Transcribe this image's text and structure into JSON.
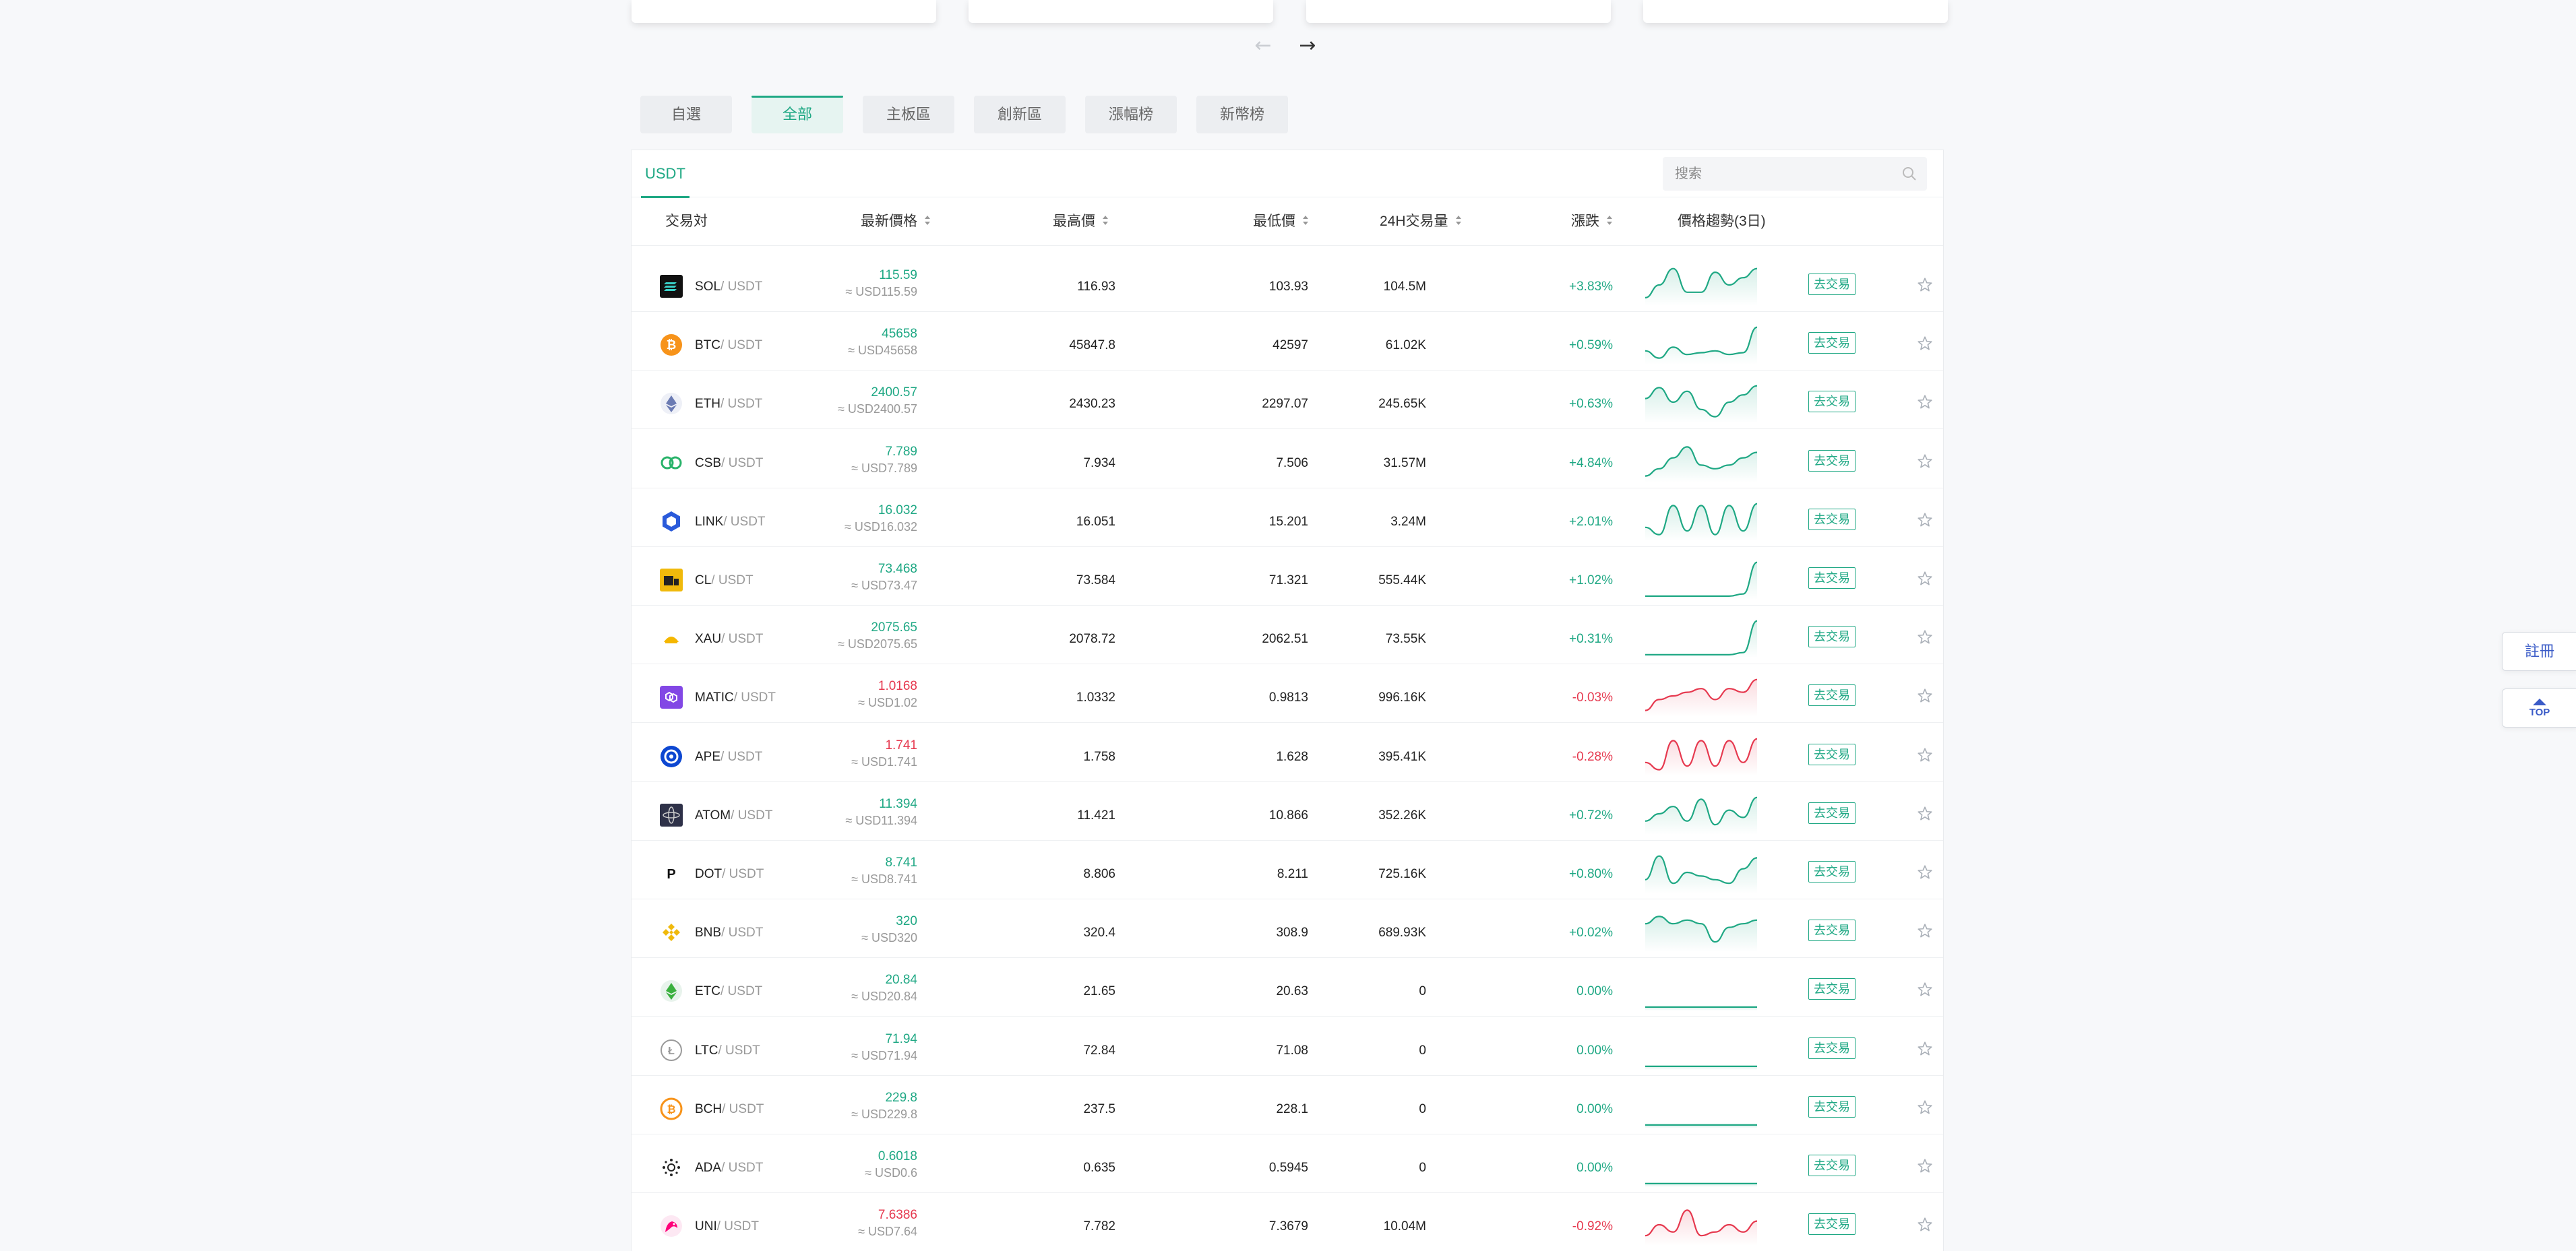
{
  "nav": {
    "prev_arrow": "←",
    "next_arrow": "→"
  },
  "category_tabs": [
    {
      "label": "自選",
      "active": false
    },
    {
      "label": "全部",
      "active": true
    },
    {
      "label": "主板區",
      "active": false
    },
    {
      "label": "創新區",
      "active": false
    },
    {
      "label": "漲幅榜",
      "active": false
    },
    {
      "label": "新幣榜",
      "active": false
    }
  ],
  "quote_tab": "USDT",
  "search": {
    "placeholder": "搜索",
    "value": ""
  },
  "columns": {
    "pair": "交易対",
    "last_price": "最新價格",
    "high": "最高價",
    "low": "最低價",
    "volume": "24H交易量",
    "change": "漲跌",
    "trend": "價格趨勢(3日)"
  },
  "trade_label": "去交易",
  "rows": [
    {
      "base": "SOL",
      "quote": "/ USDT",
      "icon": "sol-icon",
      "price": "115.59",
      "usd": "≈ USD115.59",
      "high": "116.93",
      "low": "103.93",
      "volume": "104.5M",
      "change": "+3.83%",
      "dir": "up",
      "trend": [
        0.15,
        0.5,
        0.95,
        0.3,
        0.3,
        0.85,
        0.5,
        0.7,
        0.95
      ]
    },
    {
      "base": "BTC",
      "quote": "/ USDT",
      "icon": "btc-icon",
      "price": "45658",
      "usd": "≈ USD45658",
      "high": "45847.8",
      "low": "42597",
      "volume": "61.02K",
      "change": "+0.59%",
      "dir": "up",
      "trend": [
        0.3,
        0.1,
        0.4,
        0.2,
        0.25,
        0.3,
        0.2,
        0.25,
        0.95
      ]
    },
    {
      "base": "ETH",
      "quote": "/ USDT",
      "icon": "eth-icon",
      "price": "2400.57",
      "usd": "≈ USD2400.57",
      "high": "2430.23",
      "low": "2297.07",
      "volume": "245.65K",
      "change": "+0.63%",
      "dir": "up",
      "trend": [
        0.6,
        0.9,
        0.5,
        0.8,
        0.3,
        0.1,
        0.5,
        0.7,
        0.95
      ]
    },
    {
      "base": "CSB",
      "quote": "/ USDT",
      "icon": "csb-icon",
      "price": "7.789",
      "usd": "≈ USD7.789",
      "high": "7.934",
      "low": "7.506",
      "volume": "31.57M",
      "change": "+4.84%",
      "dir": "up",
      "trend": [
        0.1,
        0.3,
        0.6,
        0.9,
        0.4,
        0.3,
        0.4,
        0.6,
        0.75
      ]
    },
    {
      "base": "LINK",
      "quote": "/ USDT",
      "icon": "link-icon",
      "price": "16.032",
      "usd": "≈ USD16.032",
      "high": "16.051",
      "low": "15.201",
      "volume": "3.24M",
      "change": "+2.01%",
      "dir": "up",
      "trend": [
        0.3,
        0.1,
        0.9,
        0.2,
        0.9,
        0.1,
        0.9,
        0.2,
        0.95
      ]
    },
    {
      "base": "CL",
      "quote": "/ USDT",
      "icon": "cl-icon",
      "price": "73.468",
      "usd": "≈ USD73.47",
      "high": "73.584",
      "low": "71.321",
      "volume": "555.44K",
      "change": "+1.02%",
      "dir": "up",
      "trend": [
        0.02,
        0.02,
        0.02,
        0.02,
        0.02,
        0.02,
        0.02,
        0.08,
        0.95
      ]
    },
    {
      "base": "XAU",
      "quote": "/ USDT",
      "icon": "xau-icon",
      "price": "2075.65",
      "usd": "≈ USD2075.65",
      "high": "2078.72",
      "low": "2062.51",
      "volume": "73.55K",
      "change": "+0.31%",
      "dir": "up",
      "trend": [
        0.02,
        0.02,
        0.02,
        0.02,
        0.02,
        0.02,
        0.02,
        0.08,
        0.95
      ]
    },
    {
      "base": "MATIC",
      "quote": "/ USDT",
      "icon": "matic-icon",
      "price": "1.0168",
      "usd": "≈ USD1.02",
      "high": "1.0332",
      "low": "0.9813",
      "volume": "996.16K",
      "change": "-0.03%",
      "dir": "down",
      "trend": [
        0.1,
        0.4,
        0.5,
        0.6,
        0.7,
        0.4,
        0.7,
        0.6,
        0.95
      ]
    },
    {
      "base": "APE",
      "quote": "/ USDT",
      "icon": "ape-icon",
      "price": "1.741",
      "usd": "≈ USD1.741",
      "high": "1.758",
      "low": "1.628",
      "volume": "395.41K",
      "change": "-0.28%",
      "dir": "down",
      "trend": [
        0.3,
        0.1,
        0.9,
        0.2,
        0.9,
        0.2,
        0.9,
        0.3,
        0.95
      ]
    },
    {
      "base": "ATOM",
      "quote": "/ USDT",
      "icon": "atom-icon",
      "price": "11.394",
      "usd": "≈ USD11.394",
      "high": "11.421",
      "low": "10.866",
      "volume": "352.26K",
      "change": "+0.72%",
      "dir": "up",
      "trend": [
        0.3,
        0.5,
        0.7,
        0.3,
        0.9,
        0.2,
        0.6,
        0.4,
        0.95
      ]
    },
    {
      "base": "DOT",
      "quote": "/ USDT",
      "icon": "dot-icon",
      "price": "8.741",
      "usd": "≈ USD8.741",
      "high": "8.806",
      "low": "8.211",
      "volume": "725.16K",
      "change": "+0.80%",
      "dir": "up",
      "trend": [
        0.3,
        0.95,
        0.2,
        0.5,
        0.4,
        0.3,
        0.2,
        0.6,
        0.9
      ]
    },
    {
      "base": "BNB",
      "quote": "/ USDT",
      "icon": "bnb-icon",
      "price": "320",
      "usd": "≈ USD320",
      "high": "320.4",
      "low": "308.9",
      "volume": "689.93K",
      "change": "+0.02%",
      "dir": "up",
      "trend": [
        0.7,
        0.9,
        0.7,
        0.8,
        0.7,
        0.2,
        0.6,
        0.7,
        0.8
      ]
    },
    {
      "base": "ETC",
      "quote": "/ USDT",
      "icon": "etc-icon",
      "price": "20.84",
      "usd": "≈ USD20.84",
      "high": "21.65",
      "low": "20.63",
      "volume": "0",
      "change": "0.00%",
      "dir": "up",
      "trend": [
        0.02,
        0.02,
        0.02,
        0.02,
        0.02,
        0.02,
        0.02,
        0.02,
        0.02
      ]
    },
    {
      "base": "LTC",
      "quote": "/ USDT",
      "icon": "ltc-icon",
      "price": "71.94",
      "usd": "≈ USD71.94",
      "high": "72.84",
      "low": "71.08",
      "volume": "0",
      "change": "0.00%",
      "dir": "up",
      "trend": [
        0.02,
        0.02,
        0.02,
        0.02,
        0.02,
        0.02,
        0.02,
        0.02,
        0.02
      ]
    },
    {
      "base": "BCH",
      "quote": "/ USDT",
      "icon": "bch-icon",
      "price": "229.8",
      "usd": "≈ USD229.8",
      "high": "237.5",
      "low": "228.1",
      "volume": "0",
      "change": "0.00%",
      "dir": "up",
      "trend": [
        0.02,
        0.02,
        0.02,
        0.02,
        0.02,
        0.02,
        0.02,
        0.02,
        0.02
      ]
    },
    {
      "base": "ADA",
      "quote": "/ USDT",
      "icon": "ada-icon",
      "price": "0.6018",
      "usd": "≈ USD0.6",
      "high": "0.635",
      "low": "0.5945",
      "volume": "0",
      "change": "0.00%",
      "dir": "up",
      "trend": [
        0.02,
        0.02,
        0.02,
        0.02,
        0.02,
        0.02,
        0.02,
        0.02,
        0.02
      ]
    },
    {
      "base": "UNI",
      "quote": "/ USDT",
      "icon": "uni-icon",
      "price": "7.6386",
      "usd": "≈ USD7.64",
      "high": "7.782",
      "low": "7.3679",
      "volume": "10.04M",
      "change": "-0.92%",
      "dir": "down",
      "trend": [
        0.2,
        0.5,
        0.3,
        0.9,
        0.2,
        0.3,
        0.5,
        0.3,
        0.6
      ]
    }
  ],
  "float_buttons": {
    "register": "註冊",
    "top": "TOP"
  },
  "colors": {
    "up": "#1fa884",
    "down": "#e6394f",
    "accent": "#1fa884",
    "link": "#3a5bc7"
  }
}
